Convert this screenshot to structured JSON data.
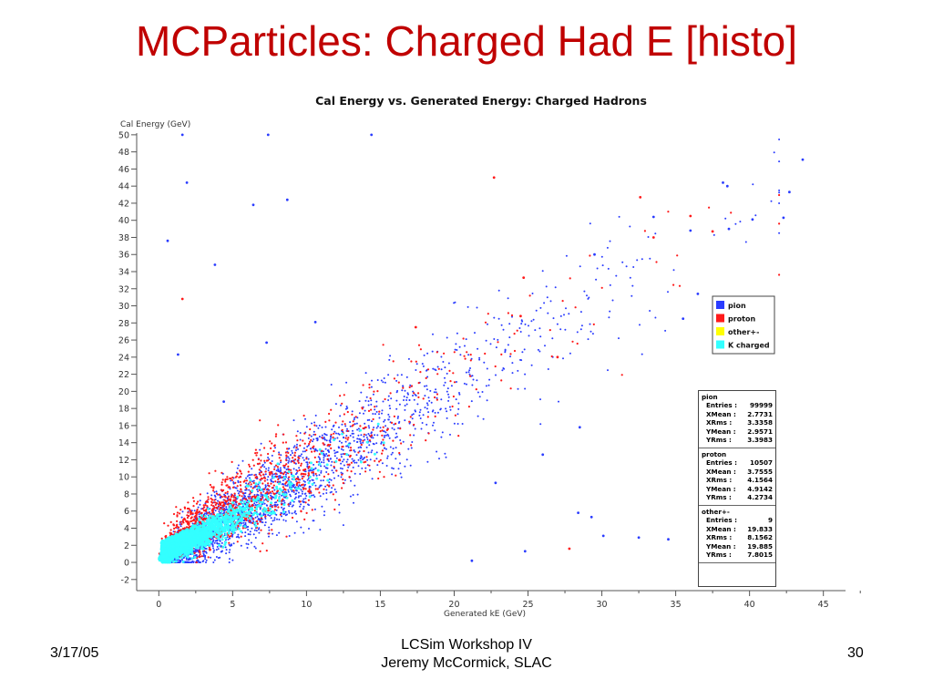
{
  "slide": {
    "title": "MCParticles: Charged Had E [histo]",
    "date": "3/17/05",
    "footer_line1": "LCSim Workshop IV",
    "footer_line2": "Jeremy McCormick, SLAC",
    "page_number": "30"
  },
  "chart_data": {
    "type": "scatter",
    "title": "Cal Energy vs. Generated Energy: Charged Hadrons",
    "xlabel": "Generated kE (GeV)",
    "ylabel": "Cal Energy (GeV)",
    "xlim": [
      -1.5,
      46.5
    ],
    "ylim": [
      -3.3,
      50.2
    ],
    "xticks": [
      "0",
      "5",
      "10",
      "15",
      "20",
      "25",
      "30",
      "35",
      "40",
      "45"
    ],
    "yticks": [
      "-2",
      "0",
      "2",
      "4",
      "6",
      "8",
      "10",
      "12",
      "14",
      "16",
      "18",
      "20",
      "22",
      "24",
      "26",
      "28",
      "30",
      "32",
      "34",
      "36",
      "38",
      "40",
      "42",
      "44",
      "46",
      "48",
      "50"
    ],
    "grid": false,
    "legend_position": "right",
    "series": [
      {
        "name": "pion",
        "color": "#2a3cff",
        "outliers": [
          [
            1.6,
            50
          ],
          [
            7.4,
            50
          ],
          [
            14.4,
            50
          ],
          [
            6.4,
            41.8
          ],
          [
            8.7,
            42.4
          ],
          [
            1.9,
            44.4
          ],
          [
            0.6,
            37.6
          ],
          [
            3.8,
            34.8
          ],
          [
            10.6,
            28.1
          ],
          [
            7.3,
            25.7
          ],
          [
            1.3,
            24.3
          ],
          [
            4.4,
            18.8
          ],
          [
            38.2,
            44.4
          ],
          [
            38.5,
            44
          ],
          [
            43.6,
            47.1
          ],
          [
            42.7,
            43.3
          ],
          [
            42.3,
            40.3
          ],
          [
            38.6,
            39
          ],
          [
            40.2,
            40.1
          ],
          [
            33.5,
            40.4
          ],
          [
            36,
            38.8
          ],
          [
            29.5,
            36
          ],
          [
            36.5,
            31.4
          ],
          [
            35.5,
            28.5
          ],
          [
            28.5,
            15.8
          ],
          [
            26,
            12.6
          ],
          [
            22.8,
            9.3
          ],
          [
            28.4,
            5.8
          ],
          [
            29.3,
            5.3
          ],
          [
            34.5,
            2.7
          ],
          [
            32.5,
            2.9
          ],
          [
            30.1,
            3.1
          ],
          [
            24.8,
            1.3
          ],
          [
            21.2,
            0.2
          ]
        ]
      },
      {
        "name": "proton",
        "color": "#ff1a1a",
        "outliers": [
          [
            1.6,
            30.8
          ],
          [
            22.7,
            45
          ],
          [
            32.6,
            42.7
          ],
          [
            33.5,
            38
          ],
          [
            36,
            40.5
          ],
          [
            37.5,
            38.7
          ],
          [
            27.8,
            1.6
          ],
          [
            24.5,
            28.8
          ],
          [
            27,
            24
          ],
          [
            24.7,
            33.3
          ],
          [
            17.4,
            27.5
          ]
        ]
      },
      {
        "name": "other+-",
        "color": "#ffff00",
        "outliers": []
      },
      {
        "name": "K charged",
        "color": "#33ffff",
        "outliers": []
      }
    ],
    "stats": [
      {
        "name": "pion",
        "entries": "99999",
        "xmean": "2.7731",
        "xrms": "3.3358",
        "ymean": "2.9571",
        "yrms": "3.3983"
      },
      {
        "name": "proton",
        "entries": "10507",
        "xmean": "3.7555",
        "xrms": "4.1564",
        "ymean": "4.9142",
        "yrms": "4.2734"
      },
      {
        "name": "other+-",
        "entries": "9",
        "xmean": "19.833",
        "xrms": "8.1562",
        "ymean": "19.885",
        "yrms": "7.8015"
      }
    ],
    "stat_labels": {
      "entries": "Entries :",
      "xmean": "XMean :",
      "xrms": "XRms :",
      "ymean": "YMean :",
      "yrms": "YRms :"
    }
  }
}
